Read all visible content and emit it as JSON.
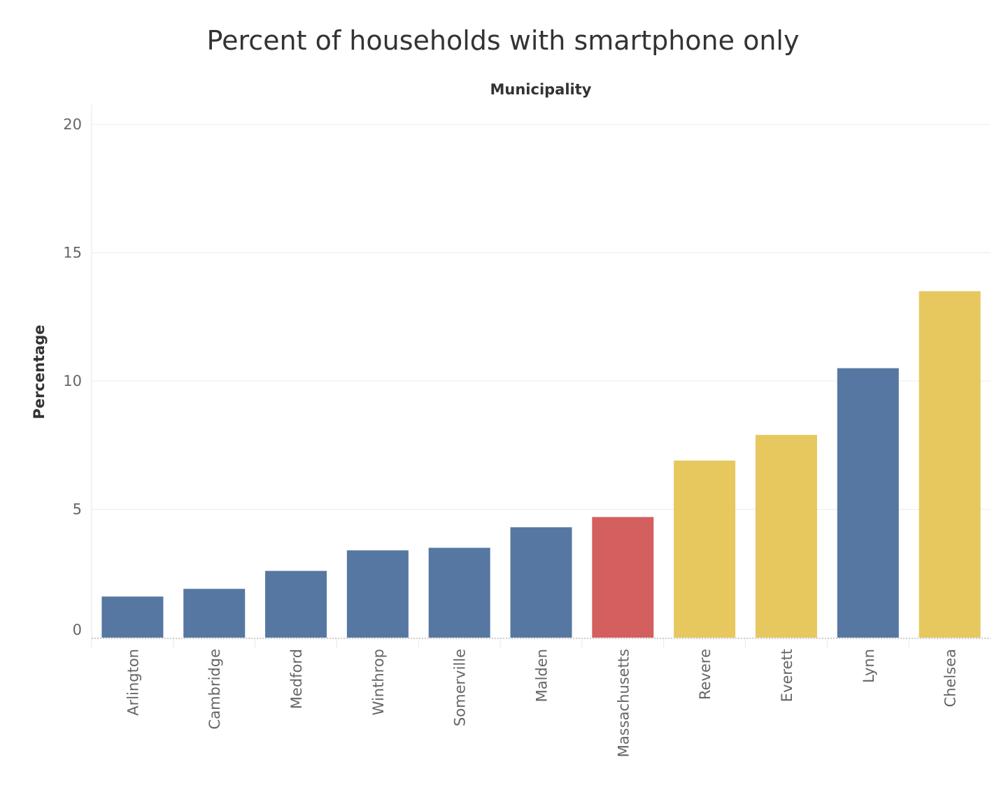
{
  "chart_data": {
    "type": "bar",
    "title": "Percent of households with smartphone only",
    "column_header": "Municipality",
    "ylabel": "Percentage",
    "ylim": [
      0,
      20
    ],
    "yticks": [
      "0",
      "5",
      "10",
      "15",
      "20"
    ],
    "grid": true,
    "categories": [
      "Arlington",
      "Cambridge",
      "Medford",
      "Winthrop",
      "Somerville",
      "Malden",
      "Massachusetts",
      "Revere",
      "Everett",
      "Lynn",
      "Chelsea"
    ],
    "values": [
      1.6,
      1.9,
      2.6,
      3.4,
      3.5,
      4.3,
      4.7,
      6.9,
      7.9,
      10.5,
      13.5
    ],
    "colors": [
      "#5677a1",
      "#5677a1",
      "#5677a1",
      "#5677a1",
      "#5677a1",
      "#5677a1",
      "#d35f5f",
      "#e6c85e",
      "#e6c85e",
      "#5677a1",
      "#e6c85e"
    ]
  }
}
